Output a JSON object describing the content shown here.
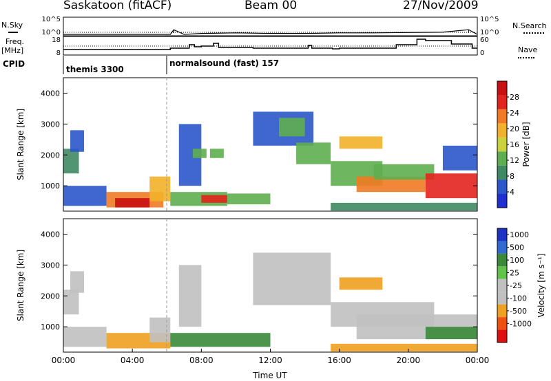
{
  "header": {
    "station": "Saskatoon (fitACF)",
    "beam": "Beam 00",
    "date": "27/Nov/2009"
  },
  "side_labels": {
    "nsky": "N.Sky",
    "freq": "Freq.",
    "mhz": "[MHz]",
    "cpid": "CPID",
    "nsearch": "N.Search",
    "nave": "Nave"
  },
  "cpid_labels": [
    "themis 3300",
    "normalsound (fast) 157"
  ],
  "colors": {
    "power": [
      "#1f2fd0",
      "#2a57c9",
      "#3f8a63",
      "#5fae4f",
      "#c9d23a",
      "#f2b12a",
      "#f07a22",
      "#e3231d",
      "#c81010"
    ],
    "velocity": [
      "#1b32c4",
      "#2f6bd0",
      "#3a8a3a",
      "#60c44a",
      "#c0c0c0",
      "#c0c0c0",
      "#f0a020",
      "#f05010",
      "#e01010"
    ]
  },
  "chart_data": [
    {
      "type": "line",
      "panel": "noise",
      "ylabels": [
        "10^5",
        "10^0"
      ],
      "right_ylabels": [
        "10^5",
        "10^0"
      ],
      "series": [
        {
          "name": "N.Sky",
          "x": [
            0,
            6.2,
            6.4,
            7,
            8,
            10,
            12,
            14,
            16,
            18,
            20,
            22,
            23.5,
            24
          ],
          "values": [
            1,
            1,
            30,
            1,
            2,
            3,
            2,
            2,
            3,
            3,
            4,
            5,
            30,
            1
          ]
        },
        {
          "name": "N.Search",
          "x": [
            0,
            6.2,
            8,
            12,
            16,
            20,
            24
          ],
          "values": [
            1,
            1,
            1,
            1,
            1,
            1,
            1
          ]
        }
      ]
    },
    {
      "type": "line",
      "panel": "frequency",
      "yticks": [
        8,
        18
      ],
      "right_yticks": [
        0,
        60
      ],
      "series": [
        {
          "name": "Freq.",
          "x": [
            0,
            6.2,
            6.2,
            7.3,
            7.3,
            7.6,
            7.6,
            8.0,
            8.0,
            8.7,
            8.7,
            9.0,
            9.0,
            11,
            11,
            14.2,
            14.2,
            14.4,
            14.4,
            15.6,
            15.6,
            16,
            16,
            19.3,
            19.3,
            20.5,
            20.5,
            21.0,
            21.0,
            22.5,
            22.5,
            23.7,
            23.7,
            24
          ],
          "values": [
            11,
            11,
            12,
            12,
            14.5,
            14.5,
            13,
            13,
            13.5,
            13.5,
            15.5,
            15.5,
            12.5,
            12.5,
            12,
            12,
            14,
            14,
            12,
            12,
            11.5,
            11.5,
            12,
            12,
            14.5,
            14.5,
            18.5,
            18.5,
            17.5,
            17.5,
            15,
            15,
            12,
            12
          ]
        },
        {
          "name": "Nave",
          "x": [
            0,
            24
          ],
          "values": [
            13.5,
            13.5
          ]
        }
      ]
    },
    {
      "type": "heatmap",
      "panel": "power",
      "ylabel": "Slant Range [km]",
      "xlim": [
        0,
        24
      ],
      "ylim": [
        180,
        4500
      ],
      "yticks": [
        1000,
        2000,
        3000,
        4000
      ],
      "colorbar": {
        "label": "Power [dB]",
        "ticks": [
          4,
          8,
          12,
          16,
          20,
          24,
          28
        ],
        "range": [
          0,
          32
        ]
      },
      "regions": [
        {
          "x": [
            0.0,
            0.9
          ],
          "range": [
            1400,
            2200
          ],
          "value": 10
        },
        {
          "x": [
            0.4,
            1.2
          ],
          "range": [
            2100,
            2800
          ],
          "value": 6
        },
        {
          "x": [
            0.0,
            2.5
          ],
          "range": [
            350,
            1000
          ],
          "value": 6
        },
        {
          "x": [
            2.5,
            5.8
          ],
          "range": [
            300,
            800
          ],
          "value": 24
        },
        {
          "x": [
            3.0,
            5.0
          ],
          "range": [
            300,
            600
          ],
          "value": 30
        },
        {
          "x": [
            5.0,
            6.2
          ],
          "range": [
            500,
            1300
          ],
          "value": 20
        },
        {
          "x": [
            6.2,
            9.5
          ],
          "range": [
            350,
            800
          ],
          "value": 14
        },
        {
          "x": [
            8.0,
            9.5
          ],
          "range": [
            450,
            700
          ],
          "value": 26
        },
        {
          "x": [
            9.5,
            12.0
          ],
          "range": [
            400,
            750
          ],
          "value": 12
        },
        {
          "x": [
            6.7,
            8.0
          ],
          "range": [
            1000,
            3000
          ],
          "value": 5
        },
        {
          "x": [
            7.5,
            8.3
          ],
          "range": [
            1900,
            2200
          ],
          "value": 14
        },
        {
          "x": [
            8.5,
            9.3
          ],
          "range": [
            1900,
            2200
          ],
          "value": 14
        },
        {
          "x": [
            11.0,
            14.5
          ],
          "range": [
            2300,
            3400
          ],
          "value": 7
        },
        {
          "x": [
            12.5,
            14.0
          ],
          "range": [
            2600,
            3200
          ],
          "value": 12
        },
        {
          "x": [
            13.5,
            15.5
          ],
          "range": [
            1700,
            2400
          ],
          "value": 12
        },
        {
          "x": [
            15.5,
            18.5
          ],
          "range": [
            1000,
            1800
          ],
          "value": 14
        },
        {
          "x": [
            16.0,
            18.5
          ],
          "range": [
            2200,
            2600
          ],
          "value": 18
        },
        {
          "x": [
            17.0,
            21.0
          ],
          "range": [
            800,
            1300
          ],
          "value": 24
        },
        {
          "x": [
            18.0,
            21.5
          ],
          "range": [
            1200,
            1700
          ],
          "value": 12
        },
        {
          "x": [
            21.0,
            24.0
          ],
          "range": [
            600,
            1400
          ],
          "value": 26
        },
        {
          "x": [
            22.0,
            24.0
          ],
          "range": [
            1500,
            2300
          ],
          "value": 6
        },
        {
          "x": [
            15.5,
            24.0
          ],
          "range": [
            200,
            450
          ],
          "value": 10
        }
      ]
    },
    {
      "type": "heatmap",
      "panel": "velocity",
      "ylabel": "Slant Range [km]",
      "xlabel": "Time UT",
      "xlim": [
        0,
        24
      ],
      "ylim": [
        180,
        4500
      ],
      "yticks": [
        1000,
        2000,
        3000,
        4000
      ],
      "xticks": [
        "00:00",
        "04:00",
        "08:00",
        "12:00",
        "16:00",
        "20:00",
        "00:00"
      ],
      "colorbar": {
        "label": "Velocity [m s⁻¹]",
        "ticks": [
          1000,
          500,
          100,
          25,
          -25,
          -100,
          -500,
          -1000
        ]
      },
      "regions": [
        {
          "x": [
            0.0,
            0.9
          ],
          "range": [
            1400,
            2200
          ],
          "value": 0
        },
        {
          "x": [
            0.4,
            1.2
          ],
          "range": [
            2100,
            2800
          ],
          "value": 0
        },
        {
          "x": [
            0.0,
            2.5
          ],
          "range": [
            350,
            1000
          ],
          "value": -100
        },
        {
          "x": [
            2.5,
            6.2
          ],
          "range": [
            300,
            800
          ],
          "value": -300
        },
        {
          "x": [
            5.0,
            6.2
          ],
          "range": [
            500,
            1300
          ],
          "value": 0
        },
        {
          "x": [
            6.2,
            12.0
          ],
          "range": [
            350,
            800
          ],
          "value": 150
        },
        {
          "x": [
            6.7,
            8.0
          ],
          "range": [
            1000,
            3000
          ],
          "value": 0
        },
        {
          "x": [
            11.0,
            15.5
          ],
          "range": [
            1700,
            3400
          ],
          "value": 0
        },
        {
          "x": [
            15.5,
            21.5
          ],
          "range": [
            1000,
            1800
          ],
          "value": 0
        },
        {
          "x": [
            16.0,
            18.5
          ],
          "range": [
            2200,
            2600
          ],
          "value": -300
        },
        {
          "x": [
            17.0,
            24.0
          ],
          "range": [
            600,
            1400
          ],
          "value": 20
        },
        {
          "x": [
            21.0,
            24.0
          ],
          "range": [
            600,
            1000
          ],
          "value": 150
        },
        {
          "x": [
            15.5,
            24.0
          ],
          "range": [
            200,
            450
          ],
          "value": -150
        }
      ]
    }
  ]
}
